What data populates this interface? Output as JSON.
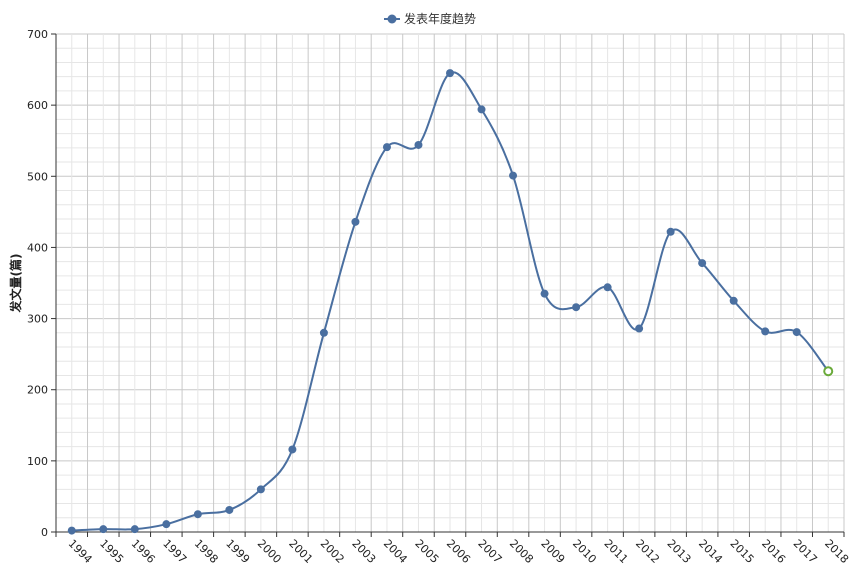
{
  "chart_data": {
    "type": "line",
    "title": "",
    "xlabel": "",
    "ylabel": "发文量(篇)",
    "ylim": [
      0,
      700
    ],
    "yticks": [
      0,
      100,
      200,
      300,
      400,
      500,
      600,
      700
    ],
    "grid": true,
    "legend_position": "top-center",
    "categories": [
      "1994",
      "1995",
      "1996",
      "1997",
      "1998",
      "1999",
      "2000",
      "2001",
      "2002",
      "2003",
      "2004",
      "2005",
      "2006",
      "2007",
      "2008",
      "2009",
      "2010",
      "2011",
      "2012",
      "2013",
      "2014",
      "2015",
      "2016",
      "2017",
      "2018"
    ],
    "series": [
      {
        "name": "发表年度趋势",
        "color": "#4a6fa0",
        "values": [
          2,
          4,
          4,
          11,
          25,
          31,
          60,
          116,
          280,
          436,
          541,
          544,
          645,
          594,
          501,
          335,
          316,
          344,
          286,
          422,
          378,
          325,
          282,
          281,
          226
        ],
        "last_point_style": "hollow",
        "last_point_color": "#6aaa3a"
      }
    ]
  }
}
